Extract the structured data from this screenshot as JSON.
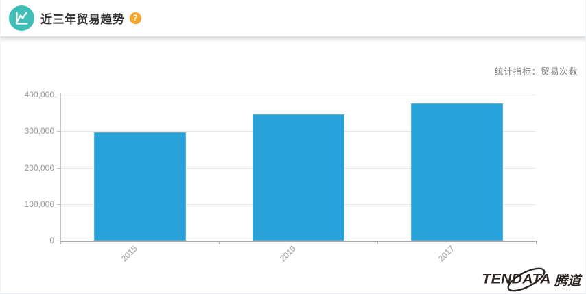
{
  "header": {
    "title": "近三年贸易趋势",
    "help_glyph": "?"
  },
  "indicator": {
    "label": "统计指标：贸易次数"
  },
  "chart_data": {
    "type": "bar",
    "title": "近三年贸易趋势",
    "indicator": "统计指标：贸易次数",
    "categories": [
      "2015",
      "2016",
      "2017"
    ],
    "values": [
      297000,
      346000,
      375000
    ],
    "series_name": "贸易次数",
    "xlabel": "",
    "ylabel": "",
    "ylim": [
      0,
      400000
    ],
    "ytick_step": 100000,
    "ytick_labels": [
      "0",
      "100,000",
      "200,000",
      "300,000",
      "400,000"
    ],
    "x_label_rotation_deg": -45,
    "grid": true,
    "legend": "none",
    "bar_color": "#29a2da",
    "bar_border_color": "#4fb2e1",
    "gridline_color": "#e6e6e6",
    "x_axis_color": "#a9a9a9",
    "y_axis_color": "#c3c3c3",
    "tick_label_color": "#999999"
  },
  "logo": {
    "text_en": "TENDATA",
    "text_zh": "腾道"
  },
  "colors": {
    "header_icon_bg": "#3fbeb8",
    "help_bg": "#f7a52b",
    "title_text": "#333333",
    "indicator_text": "#7d7d7d",
    "logo_text": "#2b2420"
  }
}
